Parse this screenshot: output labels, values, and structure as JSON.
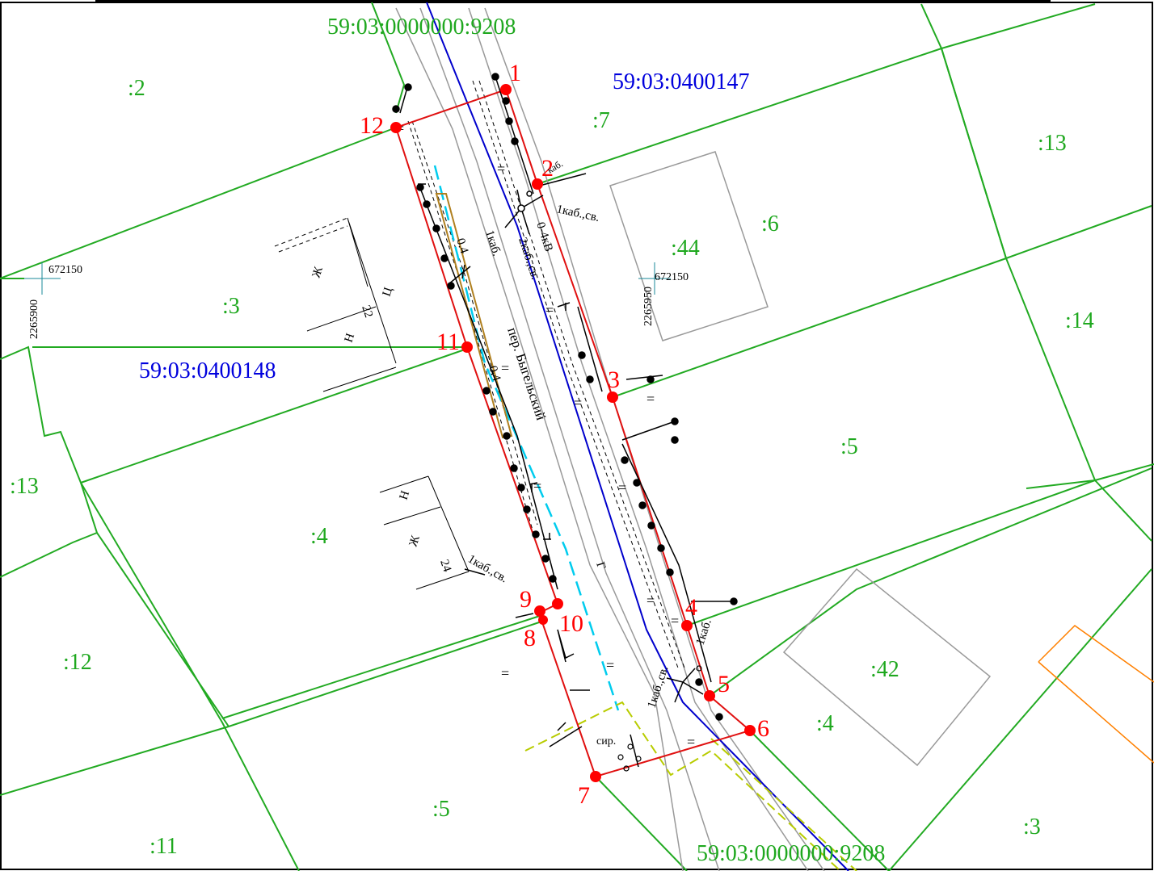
{
  "colors": {
    "parcel_border": "#22aa22",
    "parcel_label": "#1fa81f",
    "block_label": "#0000dd",
    "road_axis": "#0000cc",
    "survey_boundary": "#e01010",
    "survey_point": "#ff0000",
    "utility_cyan": "#00ccee",
    "zone_yellow": "#b8cc00",
    "zone_orange": "#ff8000",
    "building_gray": "#9a9a9a",
    "fence_black": "#000000"
  },
  "road_cadastral": {
    "top": "59:03:0000000:9208",
    "bottom": "59:03:0000000:9208"
  },
  "blocks": [
    "59:03:0400147",
    "59:03:0400148"
  ],
  "parcels": [
    ":2",
    ":7",
    ":13",
    ":6",
    ":44",
    ":3",
    ":14",
    ":13",
    ":5",
    ":4",
    ":12",
    ":42",
    ":4",
    ":5",
    ":11",
    ":3"
  ],
  "points": [
    "1",
    "2",
    "3",
    "4",
    "5",
    "6",
    "7",
    "8",
    "9",
    "10",
    "11",
    "12"
  ],
  "grid": {
    "left_x": "672150",
    "left_y": "2265900",
    "mid_x": "672150",
    "mid_y": "2265950"
  },
  "annotations": {
    "street": "пер. Быгельский",
    "cable_1": "1каб.,св.",
    "cable_2": "2каб.,св.",
    "cable_3": "1каб.",
    "cable_4": "1каб.,св.",
    "cable_5": "1каб.,св.",
    "cable_6": "1каб.",
    "kab_top": "каб.",
    "voltage": "0-4кВ",
    "line_04_a": "0.4",
    "line_04_b": "0.4",
    "house_zh_top": "Ж",
    "house_ts": "Ц",
    "house_22": "22",
    "house_n_top": "Н",
    "house_n_bot": "Н",
    "house_zh_bot": "Ж",
    "house_24": "24",
    "sir": "сир.",
    "g_mark": "Г"
  }
}
